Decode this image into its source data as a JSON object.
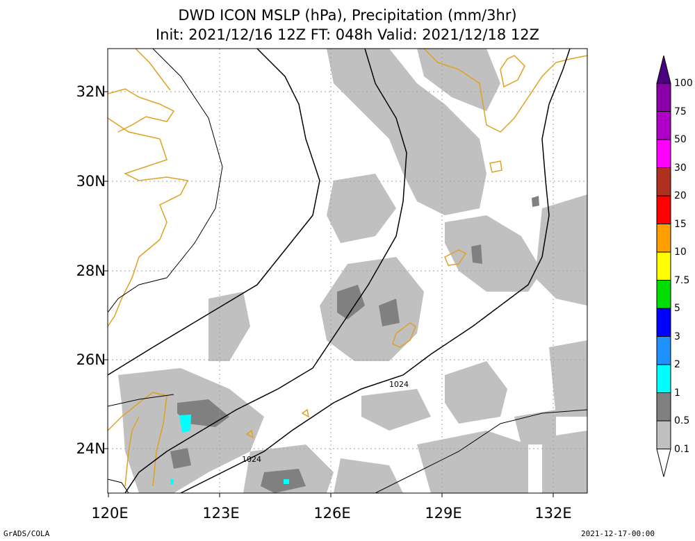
{
  "title": {
    "line1": "DWD ICON MSLP (hPa), Precipitation (mm/3hr)",
    "line2": "Init: 2021/12/16 12Z  FT: 048h  Valid: 2021/12/18 12Z"
  },
  "axes": {
    "x_ticks": [
      "120E",
      "123E",
      "126E",
      "129E",
      "132E"
    ],
    "y_ticks": [
      "32N",
      "30N",
      "28N",
      "26N",
      "24N"
    ]
  },
  "isobar_labels": [
    "1024",
    "1024"
  ],
  "colorbar": {
    "levels": [
      "100",
      "75",
      "50",
      "30",
      "20",
      "15",
      "10",
      "7.5",
      "5",
      "3",
      "2",
      "1",
      "0.5",
      "0.1"
    ],
    "colors": [
      "#8a00a8",
      "#b000c8",
      "#ff00ff",
      "#b03020",
      "#ff0000",
      "#ffa000",
      "#ffff00",
      "#00dd00",
      "#0000ff",
      "#1e90ff",
      "#00ffff",
      "#808080",
      "#c0c0c0",
      "#ffffff"
    ],
    "top_color": "#4b0082"
  },
  "footer": {
    "left": "GrADS/COLA",
    "right": "2021-12-17-00:00"
  },
  "colors": {
    "coastline": "#e0a020",
    "isobar": "#000000",
    "grid": "#a0a0a0",
    "precip_light": "#c0c0c0",
    "precip_mid": "#808080",
    "precip_heavy": "#00ffff"
  }
}
